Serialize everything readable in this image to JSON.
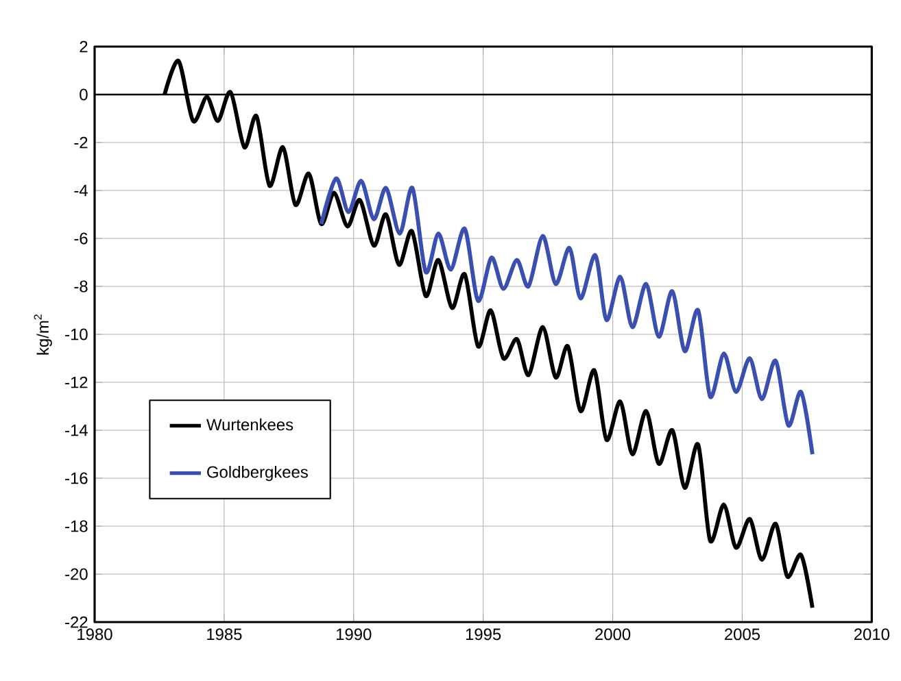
{
  "chart_data": {
    "type": "line",
    "ylabel": "kg/m$^{2}$",
    "xlim": [
      1980,
      2010
    ],
    "xticks": [
      1980,
      1985,
      1990,
      1995,
      2000,
      2005,
      2010
    ],
    "ylim": [
      -22,
      2
    ],
    "yticks": [
      -22,
      -20,
      -18,
      -16,
      -14,
      -12,
      -10,
      -8,
      -6,
      -4,
      -2,
      0,
      2
    ],
    "grid": true,
    "legend": "left",
    "line_style": "solid",
    "marker": "none",
    "ref_lines": [
      {
        "axis": "y",
        "value": 0,
        "color": "#000000"
      }
    ],
    "series": [
      {
        "name": "Wurtenkees",
        "color": "#000000",
        "x": [
          1982.7,
          1983.24,
          1983.8,
          1984.33,
          1984.76,
          1985.25,
          1985.78,
          1986.25,
          1986.75,
          1987.27,
          1987.75,
          1988.27,
          1988.75,
          1989.24,
          1989.76,
          1990.24,
          1990.78,
          1991.25,
          1991.75,
          1992.25,
          1992.78,
          1993.27,
          1993.8,
          1994.29,
          1994.8,
          1995.29,
          1995.78,
          1996.3,
          1996.75,
          1997.3,
          1997.8,
          1998.27,
          1998.76,
          1999.29,
          1999.76,
          2000.29,
          2000.76,
          2001.29,
          2001.78,
          2002.3,
          2002.78,
          2003.3,
          2003.76,
          2004.29,
          2004.76,
          2005.29,
          2005.76,
          2006.29,
          2006.74,
          2007.27,
          2007.71
        ],
        "values": [
          0,
          1.4,
          -1.1,
          -0.1,
          -1.1,
          0.1,
          -2.2,
          -0.9,
          -3.8,
          -2.2,
          -4.6,
          -3.3,
          -5.4,
          -4.1,
          -5.5,
          -4.4,
          -6.3,
          -5.0,
          -7.1,
          -5.7,
          -8.4,
          -6.9,
          -8.9,
          -7.5,
          -10.5,
          -9.0,
          -11.0,
          -10.2,
          -11.7,
          -9.7,
          -11.8,
          -10.5,
          -13.2,
          -11.5,
          -14.4,
          -12.8,
          -15.0,
          -13.2,
          -15.4,
          -14.0,
          -16.4,
          -14.6,
          -18.6,
          -17.1,
          -18.9,
          -17.7,
          -19.4,
          -17.9,
          -20.1,
          -19.2,
          -21.4
        ]
      },
      {
        "name": "Goldbergkees",
        "color": "#3a4fb0",
        "x": [
          1988.75,
          1989.32,
          1989.8,
          1990.29,
          1990.78,
          1991.25,
          1991.78,
          1992.27,
          1992.78,
          1993.27,
          1993.75,
          1994.29,
          1994.8,
          1995.32,
          1995.78,
          1996.3,
          1996.75,
          1997.3,
          1997.8,
          1998.33,
          1998.76,
          1999.33,
          1999.76,
          2000.29,
          2000.76,
          2001.29,
          2001.78,
          2002.3,
          2002.78,
          2003.3,
          2003.76,
          2004.29,
          2004.76,
          2005.29,
          2005.76,
          2006.29,
          2006.78,
          2007.27,
          2007.71
        ],
        "values": [
          -5.4,
          -3.5,
          -4.9,
          -3.6,
          -5.2,
          -3.9,
          -5.8,
          -3.9,
          -7.4,
          -5.8,
          -7.3,
          -5.6,
          -8.6,
          -6.8,
          -8.1,
          -6.9,
          -8.0,
          -5.9,
          -7.9,
          -6.4,
          -8.5,
          -6.7,
          -9.4,
          -7.6,
          -9.7,
          -7.9,
          -10.1,
          -8.2,
          -10.7,
          -9.0,
          -12.6,
          -10.8,
          -12.4,
          -11.0,
          -12.7,
          -11.1,
          -13.8,
          -12.4,
          -15.0
        ]
      }
    ]
  }
}
